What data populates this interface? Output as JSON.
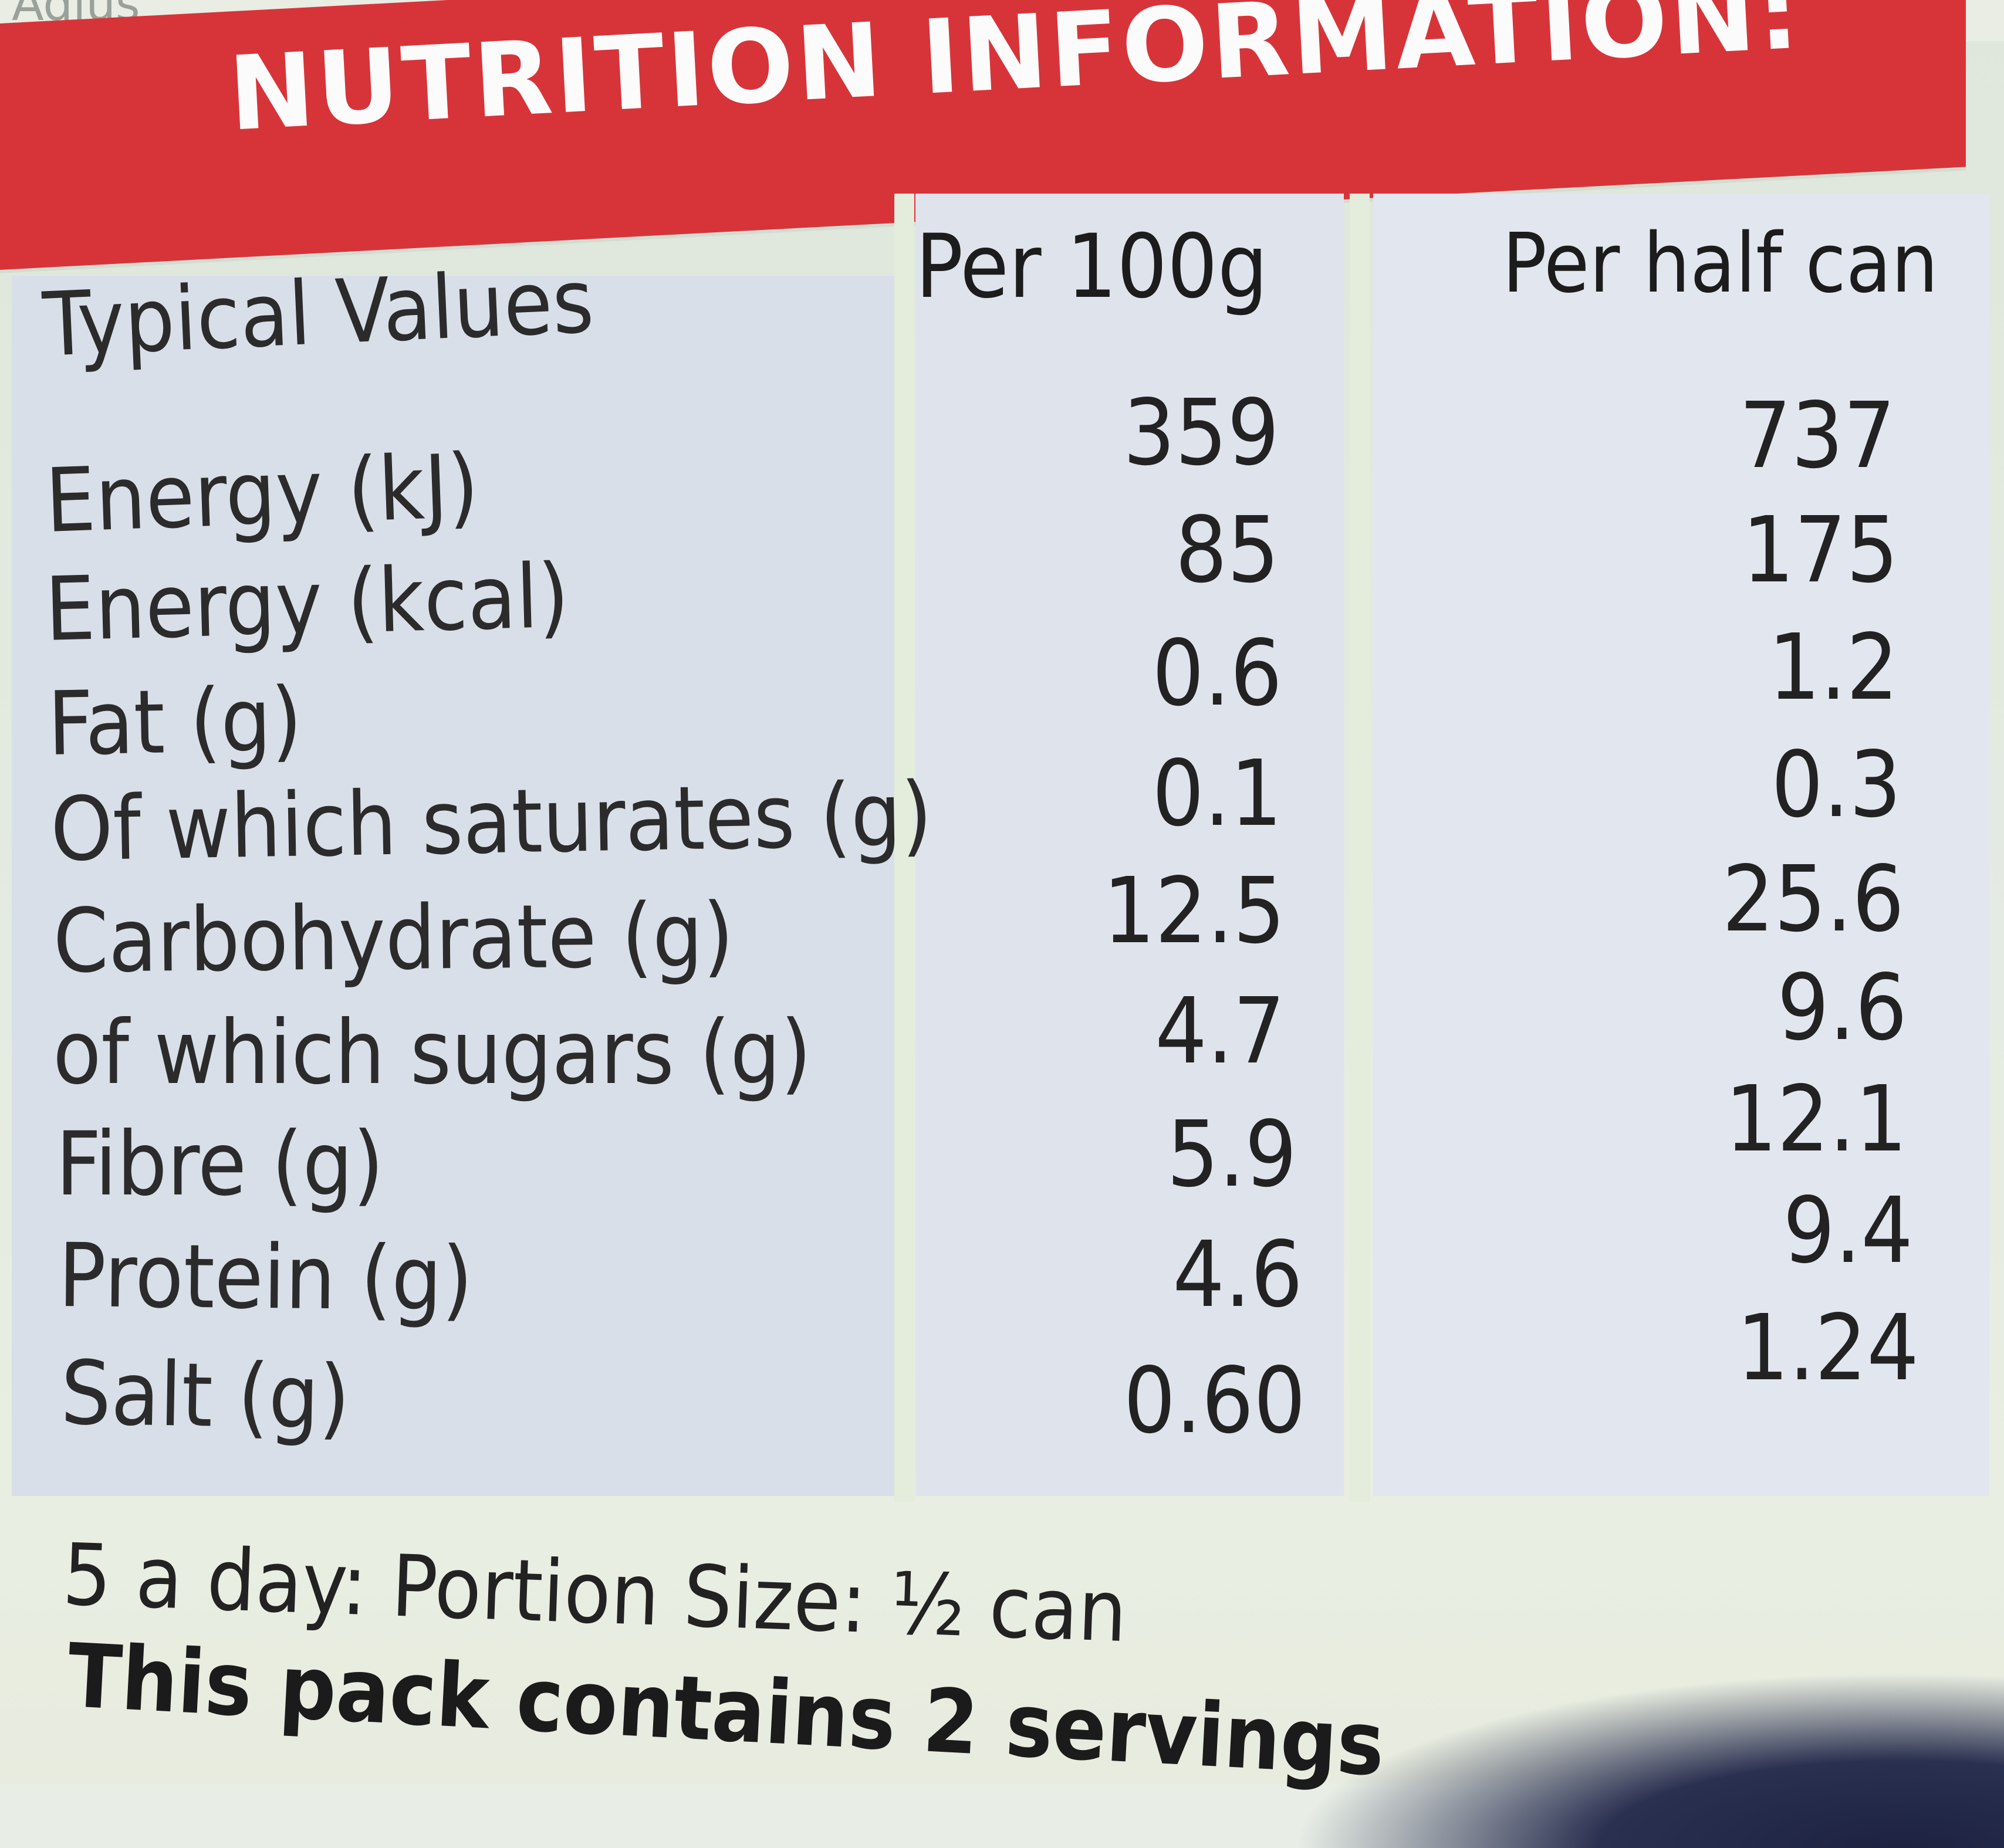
{
  "top_strip_text": "Adjus",
  "title": "NUTRITION INFORMATION:",
  "columns": {
    "name": "Typical Values",
    "per100": "Per 100g",
    "perHalf": "Per half can"
  },
  "rows": [
    {
      "label": "Energy (kJ)",
      "per100": "359",
      "perHalf": "737"
    },
    {
      "label": "Energy (kcal)",
      "per100": "85",
      "perHalf": "175"
    },
    {
      "label": "Fat (g)",
      "per100": "0.6",
      "perHalf": "1.2"
    },
    {
      "label": "Of which saturates (g)",
      "per100": "0.1",
      "perHalf": "0.3"
    },
    {
      "label": "Carbohydrate (g)",
      "per100": "12.5",
      "perHalf": "25.6"
    },
    {
      "label": "of which sugars (g)",
      "per100": "4.7",
      "perHalf": "9.6"
    },
    {
      "label": "Fibre (g)",
      "per100": "5.9",
      "perHalf": "12.1"
    },
    {
      "label": "Protein (g)",
      "per100": "4.6",
      "perHalf": "9.4"
    },
    {
      "label": "Salt (g)",
      "per100": "0.60",
      "perHalf": "1.24"
    }
  ],
  "footer": {
    "portion": "5 a day: Portion Size: ½ can",
    "servings": "This pack contains 2 servings"
  },
  "colors": {
    "header_red": "#d7343a",
    "header_text": "#fbfbfb",
    "table_bg": "#dfe3ec",
    "label_bg": "#e4ebe2"
  }
}
